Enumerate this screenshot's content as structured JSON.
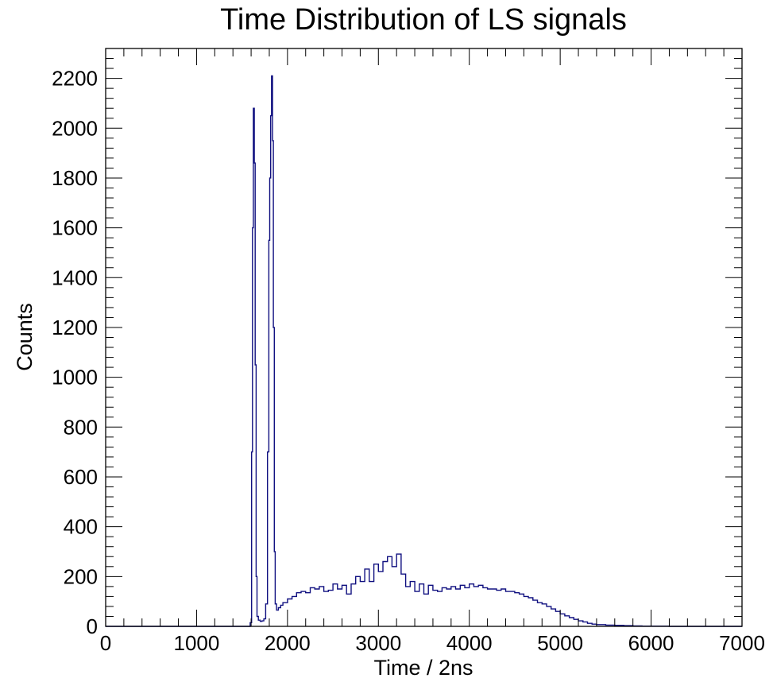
{
  "colors": {
    "series": "#101080",
    "frame": "#000000",
    "background": "#ffffff"
  },
  "chart_data": {
    "type": "area",
    "title": "Time Distribution of LS signals",
    "xlabel": "Time / 2ns",
    "ylabel": "Counts",
    "xlim": [
      0,
      7000
    ],
    "ylim": [
      0,
      2320
    ],
    "grid": false,
    "legend": "none",
    "histogram_style": "step",
    "x_ticks": [
      0,
      1000,
      2000,
      3000,
      4000,
      5000,
      6000,
      7000
    ],
    "x_tick_labels": [
      "0",
      "1000",
      "2000",
      "3000",
      "4000",
      "5000",
      "6000",
      "7000"
    ],
    "y_ticks": [
      0,
      200,
      400,
      600,
      800,
      1000,
      1200,
      1400,
      1600,
      1800,
      2000,
      2200
    ],
    "y_tick_labels": [
      "0",
      "200",
      "400",
      "600",
      "800",
      "1000",
      "1200",
      "1400",
      "1600",
      "1800",
      "2000",
      "2200"
    ],
    "series": [
      {
        "x": [
          0,
          1000,
          1560,
          1590,
          1605,
          1615,
          1625,
          1635,
          1645,
          1655,
          1665,
          1680,
          1700,
          1720,
          1740,
          1760,
          1780,
          1795,
          1805,
          1815,
          1825,
          1835,
          1845,
          1855,
          1865,
          1880,
          1900,
          1925,
          1950,
          2000,
          2050,
          2100,
          2150,
          2200,
          2250,
          2300,
          2350,
          2400,
          2450,
          2500,
          2550,
          2600,
          2650,
          2700,
          2750,
          2800,
          2850,
          2900,
          2950,
          3000,
          3050,
          3100,
          3150,
          3200,
          3250,
          3300,
          3350,
          3400,
          3450,
          3500,
          3550,
          3600,
          3650,
          3700,
          3750,
          3800,
          3850,
          3900,
          3950,
          4000,
          4050,
          4100,
          4150,
          4200,
          4250,
          4300,
          4350,
          4400,
          4450,
          4500,
          4550,
          4600,
          4650,
          4700,
          4750,
          4800,
          4850,
          4900,
          4950,
          5000,
          5050,
          5100,
          5150,
          5200,
          5250,
          5300,
          5350,
          5400,
          5500,
          5600,
          5700,
          5800,
          5900,
          6000,
          6200,
          6400,
          6600,
          6800,
          7000
        ],
        "y": [
          0,
          0,
          0,
          15,
          700,
          1600,
          2080,
          1860,
          1050,
          200,
          40,
          25,
          20,
          22,
          30,
          90,
          700,
          1550,
          1800,
          2050,
          2210,
          1950,
          1200,
          300,
          90,
          65,
          75,
          85,
          95,
          110,
          120,
          135,
          140,
          135,
          155,
          150,
          160,
          140,
          145,
          170,
          150,
          165,
          130,
          170,
          200,
          180,
          230,
          180,
          250,
          220,
          260,
          280,
          240,
          290,
          210,
          160,
          180,
          140,
          170,
          130,
          165,
          145,
          140,
          155,
          150,
          160,
          150,
          165,
          155,
          170,
          160,
          165,
          155,
          150,
          150,
          145,
          150,
          140,
          140,
          135,
          130,
          120,
          115,
          105,
          95,
          90,
          80,
          70,
          60,
          50,
          42,
          35,
          28,
          22,
          18,
          12,
          9,
          7,
          5,
          4,
          3,
          2,
          1,
          1,
          0,
          0,
          0,
          0,
          0
        ]
      }
    ]
  }
}
